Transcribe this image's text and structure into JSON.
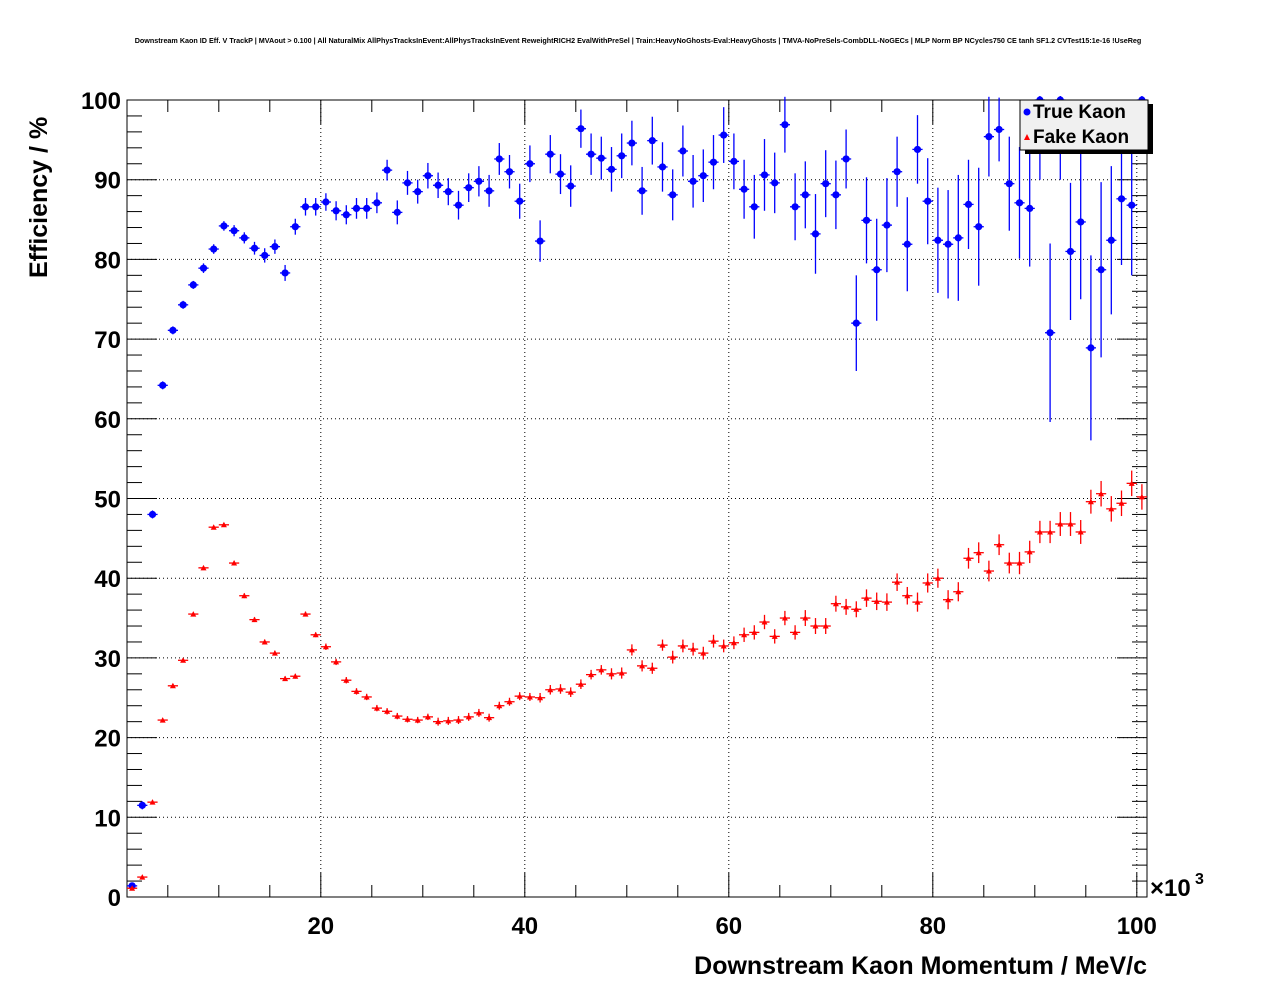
{
  "chart_data": {
    "type": "scatter",
    "title": "Downstream Kaon ID Eff. V TrackP | MVAout > 0.100 | All NaturalMix AllPhysTracksInEvent:AllPhysTracksInEvent ReweightRICH2 EvalWithPreSel | Train:HeavyNoGhosts-Eval:HeavyGhosts | TMVA-NoPreSels-CombDLL-NoGECs | MLP Norm BP NCycles750 CE tanh SF1.2 CVTest15:1e-16 !UseReg",
    "xlabel": "Downstream Kaon Momentum / MeV/c",
    "ylabel": "Efficiency / %",
    "x_multiplier": "×10",
    "x_multiplier_exp": "3",
    "xlim": [
      1,
      101
    ],
    "ylim": [
      0,
      100
    ],
    "xticks": [
      "20",
      "40",
      "60",
      "80",
      "100"
    ],
    "yticks": [
      "0",
      "10",
      "20",
      "30",
      "40",
      "50",
      "60",
      "70",
      "80",
      "90",
      "100"
    ],
    "grid": true,
    "legend_position": "top-right",
    "x_start": 1.5,
    "x_step": 1,
    "series": [
      {
        "name": "True Kaon",
        "color": "#0000ff",
        "marker": "circle",
        "values": [
          1.4,
          11.5,
          48.0,
          64.2,
          71.1,
          74.3,
          76.8,
          78.9,
          81.3,
          84.2,
          83.6,
          82.7,
          81.4,
          80.5,
          81.6,
          78.3,
          84.1,
          86.6,
          86.6,
          87.2,
          86.1,
          85.6,
          86.4,
          86.4,
          87.1,
          91.2,
          85.9,
          89.6,
          88.5,
          90.5,
          89.3,
          88.5,
          86.8,
          89.0,
          89.8,
          88.6,
          92.6,
          91.0,
          87.3,
          92.0,
          82.3,
          93.2,
          90.7,
          89.2,
          96.4,
          93.2,
          92.7,
          91.3,
          93.0,
          94.6,
          88.6,
          94.9,
          91.6,
          88.1,
          93.6,
          89.8,
          90.5,
          92.2,
          95.6,
          92.3,
          88.8,
          86.6,
          90.6,
          89.6,
          96.9,
          86.6,
          88.1,
          83.2,
          89.5,
          88.1,
          92.6,
          72.0,
          84.9,
          78.7,
          84.3,
          91.0,
          81.9,
          93.8,
          87.3,
          82.4,
          81.9,
          82.7,
          86.9,
          84.1,
          95.4,
          96.3,
          89.5,
          87.1,
          86.4,
          100,
          70.8,
          100,
          81.0,
          84.7,
          68.9,
          78.7,
          82.4,
          87.6,
          86.8,
          100
        ],
        "errors": [
          0.3,
          0.5,
          0.5,
          0.5,
          0.5,
          0.5,
          0.5,
          0.6,
          0.6,
          0.6,
          0.7,
          0.7,
          0.8,
          0.9,
          0.9,
          1.0,
          1.0,
          1.1,
          1.1,
          1.1,
          1.2,
          1.2,
          1.3,
          1.3,
          1.3,
          1.3,
          1.5,
          1.5,
          1.5,
          1.6,
          1.6,
          1.7,
          1.8,
          1.8,
          1.9,
          2.0,
          2.0,
          2.1,
          2.2,
          2.3,
          2.6,
          2.4,
          2.5,
          2.6,
          2.4,
          2.6,
          2.7,
          2.8,
          2.8,
          2.8,
          3.0,
          3.0,
          3.1,
          3.2,
          3.2,
          3.3,
          3.3,
          3.4,
          3.5,
          3.5,
          3.7,
          4.0,
          4.5,
          3.8,
          3.5,
          4.2,
          4.2,
          5.0,
          4.2,
          4.3,
          3.7,
          6.0,
          5.4,
          6.4,
          5.9,
          4.4,
          5.9,
          4.3,
          5.4,
          6.6,
          6.8,
          7.9,
          5.6,
          7.4,
          5.0,
          4.0,
          5.9,
          7.0,
          7.3,
          10.0,
          11.2,
          10.0,
          8.6,
          9.7,
          11.6,
          11.0,
          9.3,
          8.3,
          8.8,
          0.5
        ]
      },
      {
        "name": "Fake Kaon",
        "color": "#ff0000",
        "marker": "triangle",
        "values": [
          1.1,
          2.5,
          11.9,
          22.2,
          26.5,
          29.7,
          35.5,
          41.3,
          46.4,
          46.7,
          41.9,
          37.8,
          34.8,
          32.0,
          30.6,
          27.4,
          27.7,
          35.5,
          32.9,
          31.4,
          29.5,
          27.2,
          25.8,
          25.1,
          23.7,
          23.3,
          22.7,
          22.3,
          22.2,
          22.6,
          22.0,
          22.1,
          22.2,
          22.6,
          23.1,
          22.5,
          24.0,
          24.5,
          25.2,
          25.1,
          25.0,
          26.0,
          26.1,
          25.7,
          26.7,
          27.9,
          28.5,
          28.0,
          28.1,
          31.0,
          29.0,
          28.7,
          31.6,
          30.1,
          31.5,
          31.1,
          30.6,
          32.1,
          31.5,
          31.9,
          32.9,
          33.2,
          34.5,
          32.7,
          35.0,
          33.2,
          35.0,
          34.0,
          34.0,
          36.8,
          36.4,
          36.1,
          37.5,
          37.1,
          37.0,
          39.5,
          37.8,
          37.0,
          39.4,
          40.0,
          37.3,
          38.3,
          42.5,
          43.2,
          40.9,
          44.2,
          41.9,
          41.9,
          43.3,
          45.8,
          45.8,
          46.8,
          46.8,
          45.8,
          49.6,
          50.6,
          48.7,
          49.4,
          51.9,
          50.2
        ],
        "errors": [
          0.1,
          0.2,
          0.2,
          0.2,
          0.2,
          0.2,
          0.2,
          0.2,
          0.2,
          0.2,
          0.2,
          0.3,
          0.3,
          0.3,
          0.3,
          0.3,
          0.3,
          0.3,
          0.3,
          0.4,
          0.4,
          0.4,
          0.4,
          0.4,
          0.4,
          0.4,
          0.4,
          0.4,
          0.4,
          0.4,
          0.5,
          0.5,
          0.5,
          0.5,
          0.5,
          0.5,
          0.5,
          0.5,
          0.5,
          0.5,
          0.6,
          0.6,
          0.6,
          0.6,
          0.6,
          0.6,
          0.6,
          0.7,
          0.7,
          0.7,
          0.7,
          0.7,
          0.7,
          0.8,
          0.8,
          0.8,
          0.8,
          0.8,
          0.8,
          0.8,
          0.9,
          0.9,
          0.9,
          0.9,
          0.9,
          0.9,
          1.0,
          1.0,
          1.0,
          1.0,
          1.0,
          1.0,
          1.1,
          1.1,
          1.1,
          1.1,
          1.1,
          1.2,
          1.2,
          1.2,
          1.2,
          1.2,
          1.3,
          1.3,
          1.3,
          1.3,
          1.3,
          1.4,
          1.4,
          1.4,
          1.4,
          1.5,
          1.5,
          1.5,
          1.5,
          1.6,
          1.6,
          1.6,
          1.6,
          1.6
        ]
      }
    ]
  }
}
